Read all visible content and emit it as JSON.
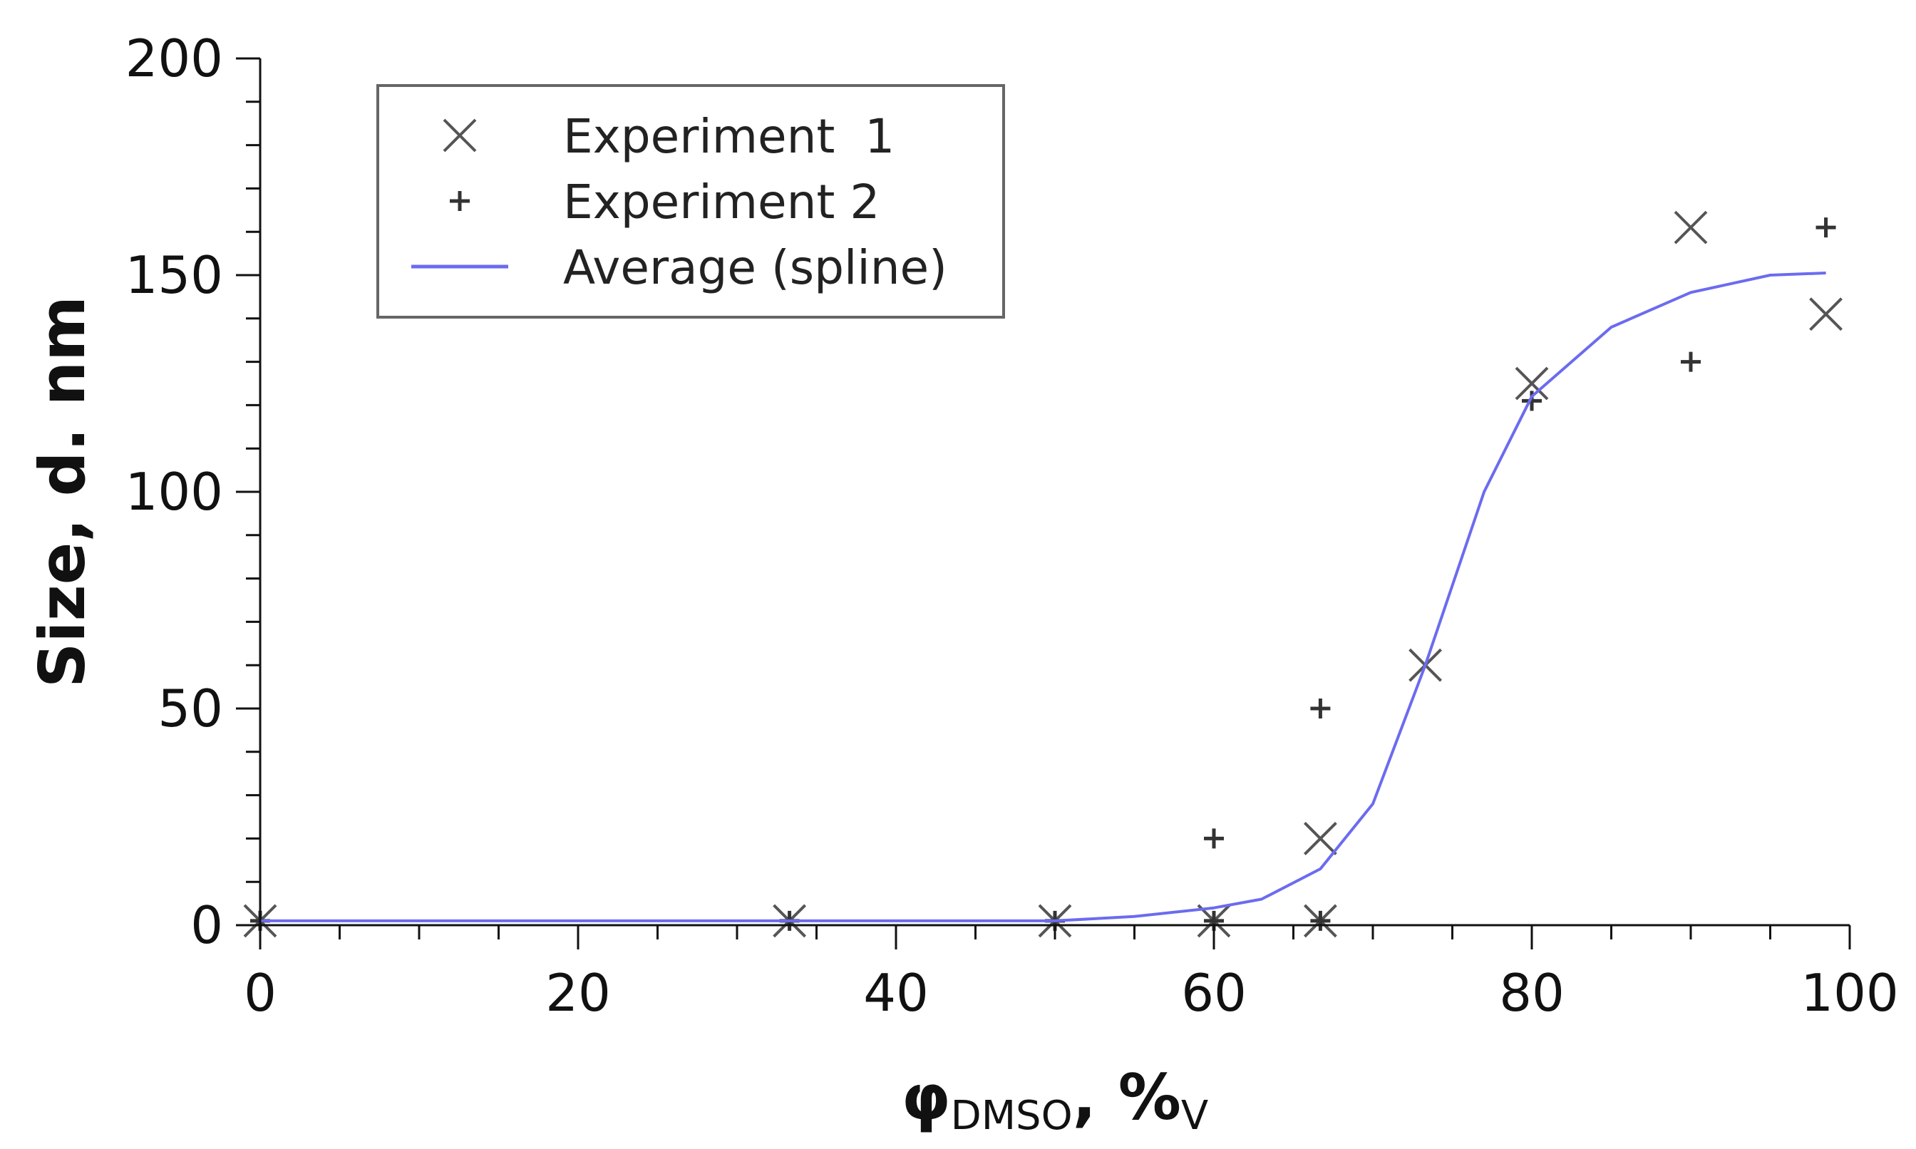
{
  "chart_data": {
    "type": "scatter",
    "xlabel_main": "φ",
    "xlabel_sub": "DMSO",
    "xlabel_unit": ", %",
    "xlabel_unit_sub": "V",
    "ylabel": "Size, d. nm",
    "xlim": [
      0,
      100
    ],
    "ylim": [
      0,
      200
    ],
    "x_ticks": [
      0,
      20,
      40,
      60,
      80,
      100
    ],
    "y_ticks": [
      0,
      50,
      100,
      150,
      200
    ],
    "x_minor_step": 5,
    "y_minor_step": 10,
    "grid": false,
    "legend_position": "top-left",
    "series": [
      {
        "name": "Experiment  1",
        "marker": "x",
        "color": "#555555",
        "points": [
          [
            0,
            1
          ],
          [
            33.3,
            1
          ],
          [
            50,
            1
          ],
          [
            60,
            1
          ],
          [
            66.7,
            1
          ],
          [
            66.7,
            20
          ],
          [
            73.3,
            60
          ],
          [
            80,
            125
          ],
          [
            90,
            161
          ],
          [
            98.5,
            141
          ]
        ]
      },
      {
        "name": "Experiment 2",
        "marker": "+",
        "color": "#333333",
        "points": [
          [
            0,
            1
          ],
          [
            33.3,
            1
          ],
          [
            50,
            1
          ],
          [
            60,
            1
          ],
          [
            60,
            20
          ],
          [
            66.7,
            1
          ],
          [
            66.7,
            50
          ],
          [
            80,
            121
          ],
          [
            90,
            130
          ],
          [
            98.5,
            161
          ]
        ]
      },
      {
        "name": "Average (spline)",
        "marker": "line",
        "color": "#6b6bf0",
        "points": [
          [
            0,
            1
          ],
          [
            10,
            1
          ],
          [
            20,
            1
          ],
          [
            30,
            1
          ],
          [
            40,
            1
          ],
          [
            50,
            1
          ],
          [
            55,
            2
          ],
          [
            60,
            4
          ],
          [
            63,
            6
          ],
          [
            66.7,
            13
          ],
          [
            70,
            28
          ],
          [
            73.3,
            60
          ],
          [
            77,
            100
          ],
          [
            80,
            122
          ],
          [
            85,
            138
          ],
          [
            90,
            146
          ],
          [
            95,
            150
          ],
          [
            98.5,
            150.5
          ]
        ]
      }
    ]
  }
}
